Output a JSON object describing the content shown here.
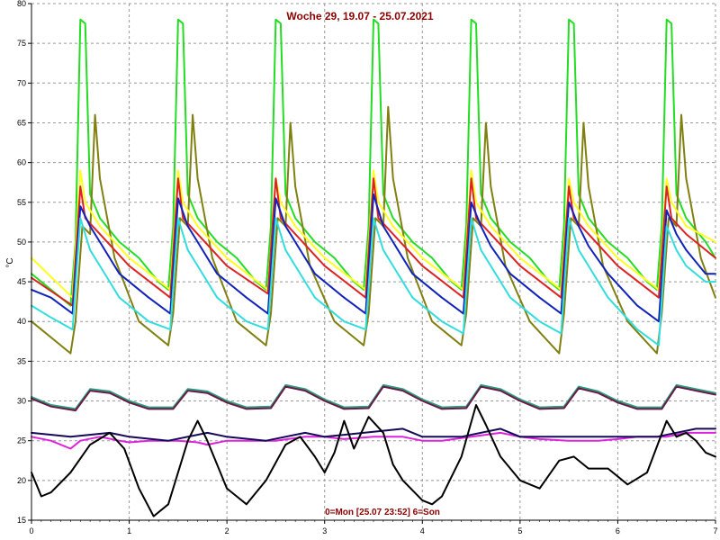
{
  "chart_data": {
    "type": "line",
    "title": "Woche 29, 19.07 - 25.07.2021",
    "footer": "0=Mon [25.07 23:52] 6=Son",
    "ylabel": "°C",
    "xlim": [
      0,
      7
    ],
    "ylim": [
      15,
      80
    ],
    "xticks": [
      0,
      1,
      2,
      3,
      4,
      5,
      6,
      7
    ],
    "yticks": [
      15,
      20,
      25,
      30,
      35,
      40,
      45,
      50,
      55,
      60,
      65,
      70,
      75,
      80
    ],
    "grid": true,
    "series": [
      {
        "color": "#22dd22",
        "x": [
          0,
          0.4,
          0.45,
          0.5,
          0.55,
          0.6,
          0.7,
          0.9,
          1.1,
          1.3,
          1.4,
          1.45,
          1.5,
          1.55,
          1.6,
          1.7,
          1.9,
          2.1,
          2.3,
          2.4,
          2.45,
          2.5,
          2.55,
          2.6,
          2.7,
          2.9,
          3.1,
          3.3,
          3.4,
          3.45,
          3.5,
          3.55,
          3.6,
          3.7,
          3.9,
          4.1,
          4.3,
          4.4,
          4.45,
          4.5,
          4.55,
          4.6,
          4.7,
          4.9,
          5.1,
          5.3,
          5.4,
          5.45,
          5.5,
          5.55,
          5.6,
          5.7,
          5.9,
          6.1,
          6.3,
          6.4,
          6.45,
          6.5,
          6.55,
          6.6,
          6.7,
          6.9,
          7.0
        ],
        "y": [
          46,
          42,
          50,
          78,
          77.5,
          56,
          53,
          50,
          48,
          45,
          44,
          52,
          78,
          77.5,
          56,
          53,
          50,
          48,
          45,
          44,
          52,
          78,
          77.5,
          56,
          53,
          50,
          48,
          45,
          44,
          52,
          78,
          77.5,
          56,
          53,
          50,
          48,
          45,
          44,
          52,
          78,
          77.5,
          56,
          53,
          50,
          48,
          45,
          44,
          52,
          78,
          77.5,
          56,
          53,
          50,
          48,
          45,
          44,
          52,
          78,
          77.5,
          56,
          53,
          50,
          48
        ]
      },
      {
        "color": "#808010",
        "x": [
          0,
          0.4,
          0.45,
          0.52,
          0.6,
          0.65,
          0.7,
          0.85,
          1.1,
          1.4,
          1.45,
          1.52,
          1.6,
          1.65,
          1.7,
          1.85,
          2.1,
          2.4,
          2.45,
          2.52,
          2.6,
          2.65,
          2.7,
          2.85,
          3.1,
          3.4,
          3.45,
          3.52,
          3.6,
          3.65,
          3.7,
          3.85,
          4.1,
          4.4,
          4.45,
          4.52,
          4.6,
          4.65,
          4.7,
          4.85,
          5.1,
          5.4,
          5.45,
          5.52,
          5.6,
          5.65,
          5.7,
          5.85,
          6.1,
          6.4,
          6.45,
          6.52,
          6.6,
          6.65,
          6.7,
          6.85,
          7.0
        ],
        "y": [
          40,
          36,
          40,
          52,
          51,
          66,
          58,
          48,
          40,
          37,
          41,
          53,
          52,
          66,
          58,
          48,
          40,
          37,
          41,
          53,
          52,
          65,
          57,
          47,
          40,
          37,
          41,
          53,
          52,
          67,
          58,
          48,
          40,
          37,
          41,
          53,
          52,
          65,
          57,
          47,
          40,
          36,
          41,
          53,
          52,
          65,
          57,
          47,
          40,
          36,
          41,
          53,
          52,
          66,
          58,
          48,
          43
        ]
      },
      {
        "color": "#ffff22",
        "x": [
          0,
          0.42,
          0.5,
          0.55,
          0.7,
          1.0,
          1.42,
          1.5,
          1.55,
          1.7,
          2.0,
          2.42,
          2.5,
          2.55,
          2.7,
          3.0,
          3.42,
          3.5,
          3.55,
          3.7,
          4.0,
          4.42,
          4.5,
          4.55,
          4.7,
          5.0,
          5.42,
          5.5,
          5.55,
          5.7,
          6.0,
          6.42,
          6.5,
          6.55,
          6.7,
          7.0
        ],
        "y": [
          48,
          43,
          59,
          55,
          52,
          48,
          44,
          59,
          55,
          52,
          48,
          44,
          58,
          55,
          52,
          48,
          44,
          59,
          55,
          52,
          48,
          44,
          59,
          55,
          52,
          48,
          44,
          58,
          55,
          52,
          48,
          44,
          58,
          55,
          52,
          50
        ]
      },
      {
        "color": "#dd2222",
        "x": [
          0,
          0.42,
          0.5,
          0.55,
          0.7,
          1.0,
          1.42,
          1.5,
          1.55,
          1.7,
          2.0,
          2.42,
          2.5,
          2.55,
          2.7,
          3.0,
          3.42,
          3.5,
          3.55,
          3.7,
          4.0,
          4.42,
          4.5,
          4.55,
          4.7,
          5.0,
          5.42,
          5.5,
          5.55,
          5.7,
          6.0,
          6.42,
          6.5,
          6.55,
          6.7,
          7.0
        ],
        "y": [
          45.5,
          42,
          57,
          53,
          51,
          47,
          43,
          58,
          53,
          51,
          47,
          43.5,
          58,
          53,
          51,
          47,
          43,
          58,
          53,
          51,
          47,
          43,
          58,
          53,
          51,
          47,
          43,
          57,
          53,
          51,
          47,
          43,
          57,
          53,
          51,
          48
        ]
      },
      {
        "color": "#1122bb",
        "x": [
          0,
          0.2,
          0.42,
          0.5,
          0.6,
          0.7,
          0.9,
          1.2,
          1.42,
          1.5,
          1.6,
          1.7,
          1.9,
          2.2,
          2.42,
          2.5,
          2.6,
          2.7,
          2.9,
          3.2,
          3.42,
          3.5,
          3.6,
          3.7,
          3.9,
          4.2,
          4.42,
          4.5,
          4.6,
          4.7,
          4.9,
          5.2,
          5.42,
          5.5,
          5.6,
          5.7,
          5.9,
          6.2,
          6.42,
          6.5,
          6.6,
          6.7,
          6.9,
          7.0
        ],
        "y": [
          44,
          43,
          41,
          54.5,
          52,
          50,
          46,
          43,
          41,
          55.5,
          52,
          50,
          46,
          43,
          41,
          55.5,
          52,
          50,
          46,
          43,
          41,
          56,
          52,
          50,
          46,
          43,
          41,
          55,
          52,
          49.5,
          46,
          43,
          41,
          55,
          52,
          49.5,
          46,
          42,
          40,
          54,
          51,
          49,
          46,
          46
        ]
      },
      {
        "color": "#33dddd",
        "x": [
          0,
          0.2,
          0.42,
          0.5,
          0.6,
          0.7,
          0.9,
          1.2,
          1.42,
          1.5,
          1.6,
          1.7,
          1.9,
          2.2,
          2.42,
          2.5,
          2.6,
          2.7,
          2.9,
          3.2,
          3.42,
          3.5,
          3.6,
          3.7,
          3.9,
          4.2,
          4.42,
          4.5,
          4.6,
          4.7,
          4.9,
          5.2,
          5.42,
          5.5,
          5.6,
          5.7,
          5.9,
          6.2,
          6.42,
          6.5,
          6.6,
          6.7,
          6.9,
          7.0
        ],
        "y": [
          42,
          40.5,
          39,
          53,
          49,
          47,
          43,
          40,
          39,
          53,
          49,
          47,
          43,
          40,
          39,
          53,
          49,
          47,
          43,
          40,
          39,
          53,
          49,
          47,
          43,
          40,
          38.5,
          53,
          49,
          47,
          43,
          40,
          38.5,
          53,
          49,
          47,
          43,
          39,
          37,
          52,
          49,
          47,
          45,
          45
        ]
      },
      {
        "color": "#2d9e7a",
        "x": [
          0,
          0.2,
          0.45,
          0.6,
          0.8,
          1.0,
          1.2,
          1.45,
          1.6,
          1.8,
          2.0,
          2.2,
          2.45,
          2.6,
          2.8,
          3.0,
          3.2,
          3.45,
          3.6,
          3.8,
          4.0,
          4.2,
          4.45,
          4.6,
          4.8,
          5.0,
          5.2,
          5.45,
          5.6,
          5.8,
          6.0,
          6.2,
          6.45,
          6.6,
          6.8,
          7.0
        ],
        "y": [
          30.5,
          29.5,
          29,
          31.5,
          31.2,
          30,
          29.2,
          29.2,
          31.5,
          31.2,
          30,
          29.2,
          29.3,
          32,
          31.5,
          30.2,
          29.2,
          29.3,
          32,
          31.5,
          30.2,
          29.2,
          29.3,
          32,
          31.5,
          30.2,
          29.2,
          29.3,
          31.8,
          31.2,
          30,
          29.2,
          29.2,
          32,
          31.5,
          31
        ]
      },
      {
        "color": "#6a1a4a",
        "x": [
          0,
          0.2,
          0.45,
          0.6,
          0.8,
          1.0,
          1.2,
          1.45,
          1.6,
          1.8,
          2.0,
          2.2,
          2.45,
          2.6,
          2.8,
          3.0,
          3.2,
          3.45,
          3.6,
          3.8,
          4.0,
          4.2,
          4.45,
          4.6,
          4.8,
          5.0,
          5.2,
          5.45,
          5.6,
          5.8,
          6.0,
          6.2,
          6.45,
          6.6,
          6.8,
          7.0
        ],
        "y": [
          30.3,
          29.3,
          28.8,
          31.3,
          31,
          29.8,
          29,
          29,
          31.3,
          31,
          29.8,
          29,
          29.1,
          31.8,
          31.3,
          30,
          29,
          29.1,
          31.8,
          31.3,
          30,
          29,
          29.1,
          31.8,
          31.3,
          30,
          29,
          29.1,
          31.6,
          31,
          29.8,
          29,
          29,
          31.8,
          31.3,
          30.8
        ]
      },
      {
        "color": "#dd22dd",
        "x": [
          0,
          0.2,
          0.4,
          0.5,
          0.7,
          0.9,
          1.0,
          1.2,
          1.5,
          1.7,
          1.8,
          2.0,
          2.2,
          2.5,
          2.8,
          3.0,
          3.2,
          3.5,
          3.8,
          4.0,
          4.2,
          4.5,
          4.8,
          5.0,
          5.2,
          5.5,
          5.8,
          6.0,
          6.2,
          6.5,
          6.7,
          7.0
        ],
        "y": [
          25.5,
          25,
          24,
          25,
          25.5,
          25,
          24.8,
          25,
          25,
          24.8,
          24.5,
          25,
          25,
          25,
          25.5,
          25.5,
          25.2,
          25.5,
          25.5,
          25,
          25,
          25.5,
          26,
          25.5,
          25.2,
          25,
          25,
          25.2,
          25.5,
          25.5,
          26,
          26
        ]
      },
      {
        "color": "#150a5a",
        "x": [
          0,
          0.4,
          0.8,
          1.0,
          1.4,
          1.8,
          2.0,
          2.4,
          2.8,
          3.0,
          3.4,
          3.8,
          4.0,
          4.4,
          4.8,
          5.0,
          5.4,
          5.8,
          6.0,
          6.4,
          6.8,
          7.0
        ],
        "y": [
          26,
          25.5,
          26,
          25.5,
          25,
          26,
          25.5,
          25,
          26,
          25.5,
          26,
          26.5,
          25.5,
          25.5,
          26.5,
          25.5,
          25.5,
          25.5,
          25.5,
          25.5,
          26.5,
          26.5
        ]
      },
      {
        "color": "#000000",
        "x": [
          0,
          0.1,
          0.2,
          0.4,
          0.6,
          0.8,
          0.95,
          1.1,
          1.25,
          1.4,
          1.6,
          1.7,
          1.8,
          2.0,
          2.1,
          2.2,
          2.4,
          2.6,
          2.75,
          2.9,
          3.0,
          3.1,
          3.2,
          3.3,
          3.45,
          3.6,
          3.7,
          3.8,
          4.0,
          4.1,
          4.2,
          4.4,
          4.55,
          4.65,
          4.8,
          5.0,
          5.2,
          5.4,
          5.55,
          5.7,
          5.9,
          6.1,
          6.3,
          6.5,
          6.6,
          6.7,
          6.8,
          6.9,
          7.0
        ],
        "y": [
          21,
          18,
          18.5,
          21,
          24.5,
          26,
          24,
          19,
          15.5,
          17,
          25,
          27.5,
          25,
          19,
          18,
          17,
          20,
          24.5,
          25.5,
          23,
          21,
          23.5,
          27.5,
          24,
          28,
          26,
          22,
          20,
          17.5,
          17,
          18,
          23,
          29.5,
          27,
          23,
          20,
          19,
          22.5,
          23,
          21.5,
          21.5,
          19.5,
          21,
          27.5,
          25.5,
          26,
          25,
          23.5,
          23
        ]
      }
    ]
  }
}
